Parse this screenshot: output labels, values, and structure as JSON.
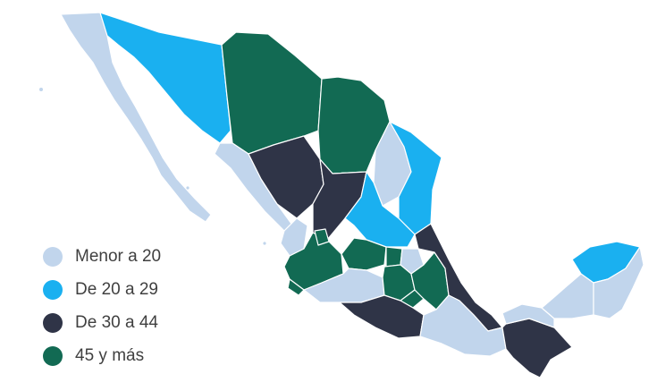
{
  "legend": {
    "items": [
      {
        "label": "Menor a 20",
        "color": "#c1d5ec"
      },
      {
        "label": "De 20 a 29",
        "color": "#1ab0f0"
      },
      {
        "label": "De 30 a 44",
        "color": "#2f3447"
      },
      {
        "label": "45 y más",
        "color": "#126a53"
      }
    ]
  }
}
